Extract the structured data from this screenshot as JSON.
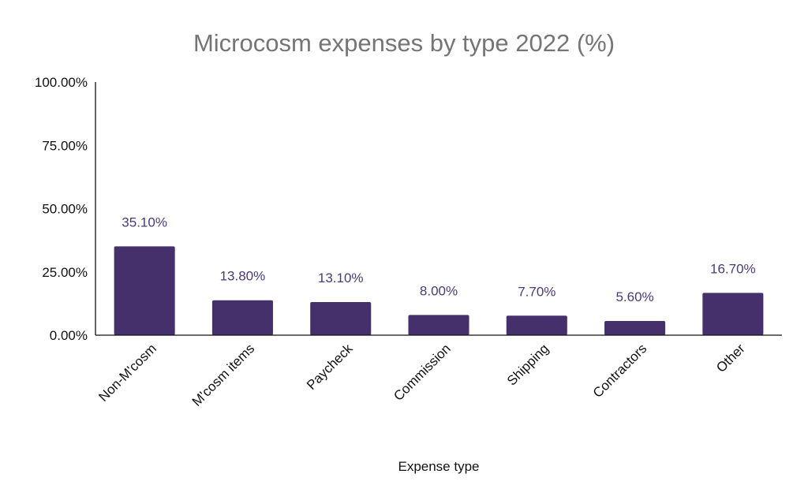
{
  "colors": {
    "bar": "#45306b",
    "data_label": "#4a3a7a",
    "axis": "#111111",
    "title": "#757575"
  },
  "chart_data": {
    "type": "bar",
    "title": "Microcosm expenses by type 2022 (%)",
    "xlabel": "Expense type",
    "ylabel": "",
    "categories": [
      "Non-M'cosm",
      "M'cosm items",
      "Paycheck",
      "Commission",
      "Shipping",
      "Contractors",
      "Other"
    ],
    "values": [
      35.1,
      13.8,
      13.1,
      8.0,
      7.7,
      5.6,
      16.7
    ],
    "data_labels": [
      "35.10%",
      "13.80%",
      "13.10%",
      "8.00%",
      "7.70%",
      "5.60%",
      "16.70%"
    ],
    "ylim": [
      0,
      100
    ],
    "y_ticks": [
      0,
      25,
      50,
      75,
      100
    ],
    "y_tick_labels": [
      "0.00%",
      "25.00%",
      "50.00%",
      "75.00%",
      "100.00%"
    ],
    "grid": false,
    "legend": "none"
  }
}
